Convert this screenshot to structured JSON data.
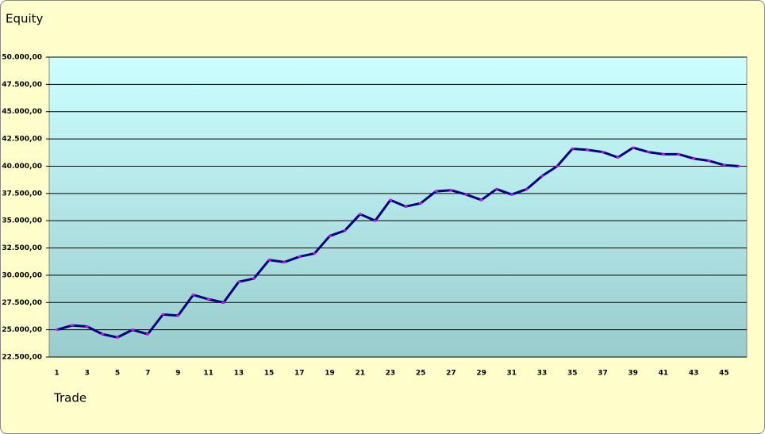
{
  "chart_data": {
    "type": "line",
    "title": "Equity",
    "x_label": "Trade",
    "categories": [
      "1",
      null,
      "3",
      null,
      "5",
      null,
      "7",
      null,
      "9",
      null,
      "11",
      null,
      "13",
      null,
      "15",
      null,
      "17",
      null,
      "19",
      null,
      "21",
      null,
      "23",
      null,
      "25",
      null,
      "27",
      null,
      "29",
      null,
      "31",
      null,
      "33",
      null,
      "35",
      null,
      "37",
      null,
      "39",
      null,
      "41",
      null,
      "43",
      null,
      "45",
      null
    ],
    "series": [
      {
        "name": "Equity",
        "color": "#000080",
        "marker_color": "#ff00ff",
        "values": [
          25000,
          25400,
          25300,
          24600,
          24300,
          25000,
          24600,
          26400,
          26300,
          28200,
          27800,
          27500,
          29400,
          29700,
          31400,
          31200,
          31700,
          32000,
          33600,
          34100,
          35600,
          35000,
          36900,
          36300,
          36600,
          37700,
          37800,
          37400,
          36900,
          37900,
          37400,
          37900,
          39100,
          40000,
          41600,
          41500,
          41300,
          40800,
          41700,
          41300,
          41100,
          41100,
          40700,
          40500,
          40100,
          40000
        ]
      }
    ],
    "ylim": [
      22500,
      50000
    ],
    "yticks": [
      {
        "value": 22500,
        "label": "22.500,00"
      },
      {
        "value": 25000,
        "label": "25.000,00"
      },
      {
        "value": 27500,
        "label": "27.500,00"
      },
      {
        "value": 30000,
        "label": "30.000,00"
      },
      {
        "value": 32500,
        "label": "32.500,00"
      },
      {
        "value": 35000,
        "label": "35.000,00"
      },
      {
        "value": 37500,
        "label": "37.500,00"
      },
      {
        "value": 40000,
        "label": "40.000,00"
      },
      {
        "value": 42500,
        "label": "42.500,00"
      },
      {
        "value": 45000,
        "label": "45.000,00"
      },
      {
        "value": 47500,
        "label": "47.500,00"
      },
      {
        "value": 50000,
        "label": "50.000,00"
      }
    ],
    "grid": true
  }
}
